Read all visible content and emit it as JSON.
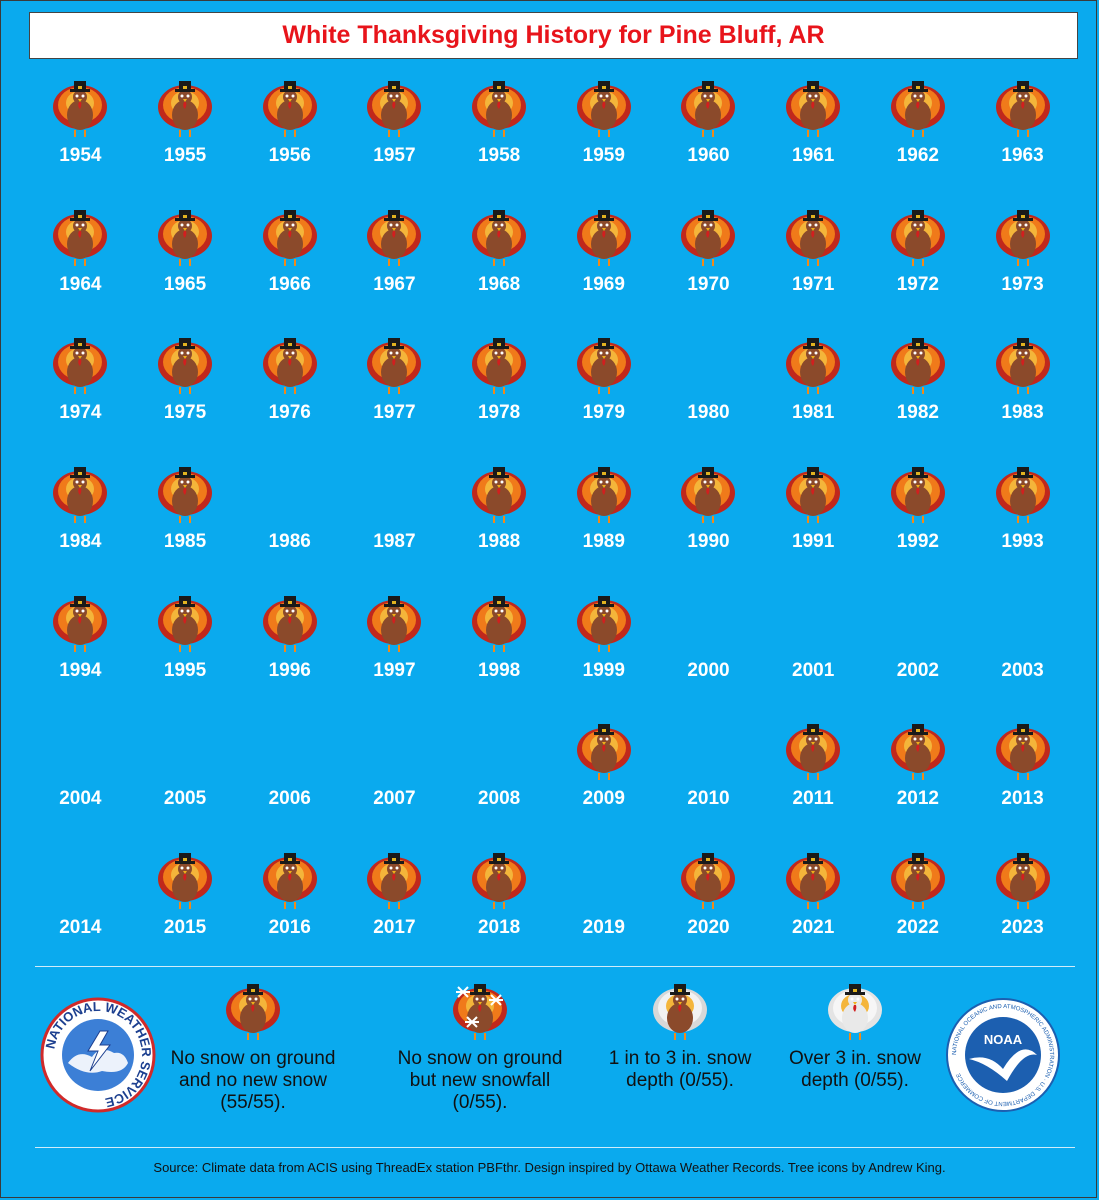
{
  "title": "White Thanksgiving History for Pine Bluff, AR",
  "years": [
    {
      "year": "1954",
      "turkey": true
    },
    {
      "year": "1955",
      "turkey": true
    },
    {
      "year": "1956",
      "turkey": true
    },
    {
      "year": "1957",
      "turkey": true
    },
    {
      "year": "1958",
      "turkey": true
    },
    {
      "year": "1959",
      "turkey": true
    },
    {
      "year": "1960",
      "turkey": true
    },
    {
      "year": "1961",
      "turkey": true
    },
    {
      "year": "1962",
      "turkey": true
    },
    {
      "year": "1963",
      "turkey": true
    },
    {
      "year": "1964",
      "turkey": true
    },
    {
      "year": "1965",
      "turkey": true
    },
    {
      "year": "1966",
      "turkey": true
    },
    {
      "year": "1967",
      "turkey": true
    },
    {
      "year": "1968",
      "turkey": true
    },
    {
      "year": "1969",
      "turkey": true
    },
    {
      "year": "1970",
      "turkey": true
    },
    {
      "year": "1971",
      "turkey": true
    },
    {
      "year": "1972",
      "turkey": true
    },
    {
      "year": "1973",
      "turkey": true
    },
    {
      "year": "1974",
      "turkey": true
    },
    {
      "year": "1975",
      "turkey": true
    },
    {
      "year": "1976",
      "turkey": true
    },
    {
      "year": "1977",
      "turkey": true
    },
    {
      "year": "1978",
      "turkey": true
    },
    {
      "year": "1979",
      "turkey": true
    },
    {
      "year": "1980",
      "turkey": false
    },
    {
      "year": "1981",
      "turkey": true
    },
    {
      "year": "1982",
      "turkey": true
    },
    {
      "year": "1983",
      "turkey": true
    },
    {
      "year": "1984",
      "turkey": true
    },
    {
      "year": "1985",
      "turkey": true
    },
    {
      "year": "1986",
      "turkey": false
    },
    {
      "year": "1987",
      "turkey": false
    },
    {
      "year": "1988",
      "turkey": true
    },
    {
      "year": "1989",
      "turkey": true
    },
    {
      "year": "1990",
      "turkey": true
    },
    {
      "year": "1991",
      "turkey": true
    },
    {
      "year": "1992",
      "turkey": true
    },
    {
      "year": "1993",
      "turkey": true
    },
    {
      "year": "1994",
      "turkey": true
    },
    {
      "year": "1995",
      "turkey": true
    },
    {
      "year": "1996",
      "turkey": true
    },
    {
      "year": "1997",
      "turkey": true
    },
    {
      "year": "1998",
      "turkey": true
    },
    {
      "year": "1999",
      "turkey": true
    },
    {
      "year": "2000",
      "turkey": false
    },
    {
      "year": "2001",
      "turkey": false
    },
    {
      "year": "2002",
      "turkey": false
    },
    {
      "year": "2003",
      "turkey": false
    },
    {
      "year": "2004",
      "turkey": false
    },
    {
      "year": "2005",
      "turkey": false
    },
    {
      "year": "2006",
      "turkey": false
    },
    {
      "year": "2007",
      "turkey": false
    },
    {
      "year": "2008",
      "turkey": false
    },
    {
      "year": "2009",
      "turkey": true
    },
    {
      "year": "2010",
      "turkey": false
    },
    {
      "year": "2011",
      "turkey": true
    },
    {
      "year": "2012",
      "turkey": true
    },
    {
      "year": "2013",
      "turkey": true
    },
    {
      "year": "2014",
      "turkey": false
    },
    {
      "year": "2015",
      "turkey": true
    },
    {
      "year": "2016",
      "turkey": true
    },
    {
      "year": "2017",
      "turkey": true
    },
    {
      "year": "2018",
      "turkey": true
    },
    {
      "year": "2019",
      "turkey": false
    },
    {
      "year": "2020",
      "turkey": true
    },
    {
      "year": "2021",
      "turkey": true
    },
    {
      "year": "2022",
      "turkey": true
    },
    {
      "year": "2023",
      "turkey": true
    }
  ],
  "legend": [
    {
      "icon": "pilgrim-turkey-icon",
      "label": "No snow on ground and no new snow (55/55)."
    },
    {
      "icon": "snowflake-turkey-icon",
      "label": "No snow on ground but new snowfall (0/55)."
    },
    {
      "icon": "snowy-turkey-icon",
      "label": "1 in to 3 in. snow depth (0/55)."
    },
    {
      "icon": "snow-covered-turkey-icon",
      "label": "Over 3 in. snow depth (0/55)."
    }
  ],
  "logos": {
    "nws_text": "NATIONAL WEATHER SERVICE",
    "noaa_center": "NOAA",
    "noaa_ring": "NATIONAL OCEANIC AND ATMOSPHERIC ADMINISTRATION · U.S. DEPARTMENT OF COMMERCE"
  },
  "source": "Source: Climate data from ACIS using ThreadEx station PBFthr. Design inspired by Ottawa Weather Records. Tree icons by Andrew King.",
  "colors": {
    "background": "#0aaaee",
    "title_red": "#e8141b",
    "turkey_body": "#8b4a2b",
    "feather_orange": "#f07a1a",
    "feather_red": "#c0281c"
  }
}
